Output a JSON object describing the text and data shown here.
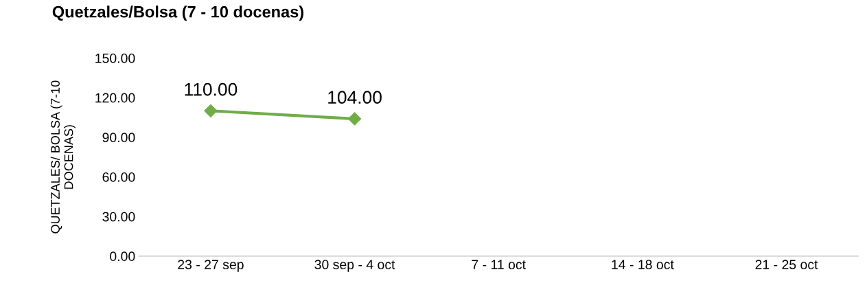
{
  "chart_data": {
    "type": "line",
    "title": "Quetzales/Bolsa (7 - 10 docenas)",
    "ylabel": "QUETZALES/ BOLSA (7-10\nDOCENAS)",
    "categories": [
      "23 - 27 sep",
      "30 sep - 4 oct",
      "7 - 11 oct",
      "14 - 18 oct",
      "21 - 25 oct"
    ],
    "series": [
      {
        "color": "#70ad47",
        "values": [
          110,
          104,
          null,
          null,
          null
        ],
        "value_labels": [
          "110.00",
          "104.00",
          null,
          null,
          null
        ]
      }
    ],
    "ylim": [
      0,
      150
    ],
    "yticks": [
      {
        "value": 0,
        "label": "0.00"
      },
      {
        "value": 30,
        "label": "30.00"
      },
      {
        "value": 60,
        "label": "60.00"
      },
      {
        "value": 90,
        "label": "90.00"
      },
      {
        "value": 120,
        "label": "120.00"
      },
      {
        "value": 150,
        "label": "150.00"
      }
    ],
    "grid": false,
    "legend": false,
    "marker": "diamond",
    "line_style": "solid"
  }
}
